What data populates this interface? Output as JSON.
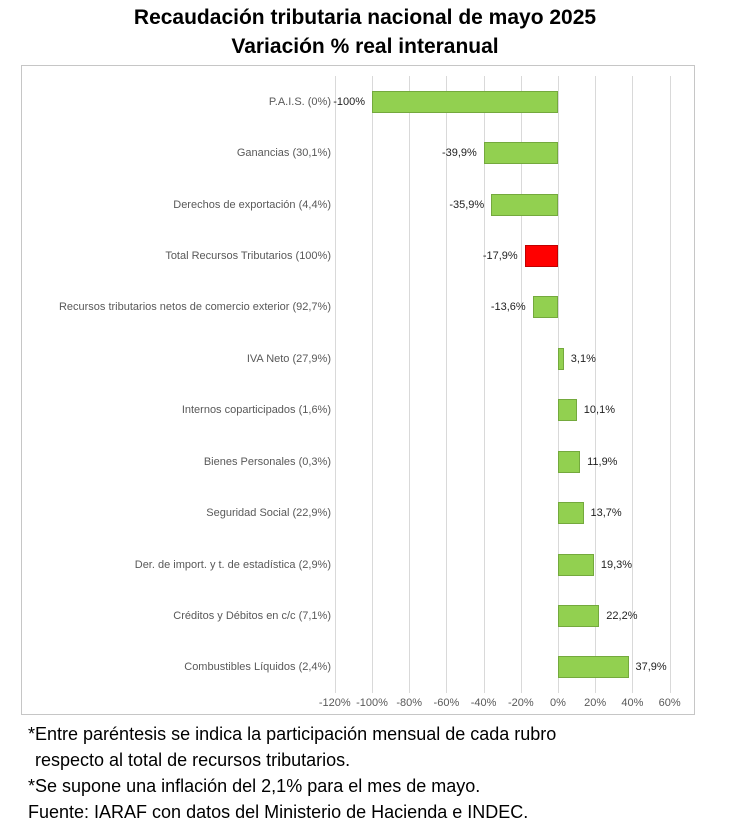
{
  "title": {
    "line1": "Recaudación tributaria nacional de mayo 2025",
    "line2": "Variación % real interanual"
  },
  "chart_data": {
    "type": "bar",
    "orientation": "horizontal",
    "title": "Recaudación tributaria nacional de mayo 2025 - Variación % real interanual",
    "categories": [
      "P.A.I.S. (0%)",
      "Ganancias (30,1%)",
      "Derechos de exportación (4,4%)",
      "Total Recursos Tributarios (100%)",
      "Recursos tributarios netos de comercio exterior (92,7%)",
      "IVA Neto (27,9%)",
      "Internos coparticipados (1,6%)",
      "Bienes Personales (0,3%)",
      "Seguridad Social (22,9%)",
      "Der. de import. y t. de estadística (2,9%)",
      "Créditos y Débitos en c/c (7,1%)",
      "Combustibles Líquidos (2,4%)"
    ],
    "values": [
      -100,
      -39.9,
      -35.9,
      -17.9,
      -13.6,
      3.1,
      10.1,
      11.9,
      13.7,
      19.3,
      22.2,
      37.9
    ],
    "value_labels": [
      "-100%",
      "-39,9%",
      "-35,9%",
      "-17,9%",
      "-13,6%",
      "3,1%",
      "10,1%",
      "11,9%",
      "13,7%",
      "19,3%",
      "22,2%",
      "37,9%"
    ],
    "bar_colors": [
      "#92D050",
      "#92D050",
      "#92D050",
      "#FF0000",
      "#92D050",
      "#92D050",
      "#92D050",
      "#92D050",
      "#92D050",
      "#92D050",
      "#92D050",
      "#92D050"
    ],
    "bar_border_colors": [
      "#74A93D",
      "#74A93D",
      "#74A93D",
      "#C00000",
      "#74A93D",
      "#74A93D",
      "#74A93D",
      "#74A93D",
      "#74A93D",
      "#74A93D",
      "#74A93D",
      "#74A93D"
    ],
    "x_tick_labels": [
      "-120%",
      "-100%",
      "-80%",
      "-60%",
      "-40%",
      "-20%",
      "0%",
      "20%",
      "40%",
      "60%"
    ],
    "x_tick_values": [
      -120,
      -100,
      -80,
      -60,
      -40,
      -20,
      0,
      20,
      40,
      60
    ],
    "xlim": [
      -120,
      60
    ],
    "grid": "vertical",
    "legend": "none"
  },
  "footnotes": {
    "line1": "*Entre paréntesis se indica la participación mensual de cada rubro",
    "line2": "respecto al total de recursos tributarios.",
    "line3": "*Se supone una inflación del 2,1% para el mes de mayo.",
    "line4": "Fuente: IARAF con datos del Ministerio de Hacienda e INDEC."
  },
  "colors": {
    "bar_positive": "#92D050",
    "bar_highlight": "#FF0000",
    "gridline": "#D9D9D9",
    "chart_border": "#C6C6C6",
    "category_label": "#595959",
    "tick_label": "#595959",
    "value_label": "#1F1F1F"
  }
}
